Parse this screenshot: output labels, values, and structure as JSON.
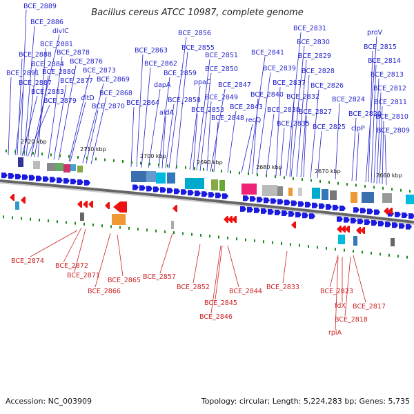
{
  "title": "Bacillus cereus ATCC 10987, complete genome",
  "footer": {
    "accession": "Accession: NC_003909",
    "topology": "Topology: circular; Length: 5,224,283 bp; Genes: 5,735"
  },
  "kbp_labels": [
    "2720 kbp",
    "2710 kbp",
    "2700 kbp",
    "2690 kbp",
    "2680 kbp",
    "2670 kbp",
    "2660 kbp"
  ],
  "upper_labels": [
    "BCE_2889",
    "BCE_2886",
    "divIC",
    "BCE_2881",
    "BCE_2888",
    "BCE_2878",
    "BCE_2884",
    "BCE_2876",
    "BCE_2891",
    "BCE_2880",
    "BCE_2873",
    "BCE_2887",
    "BCE_2877",
    "BCE_2869",
    "BCE_2883",
    "BCE_2868",
    "BCE_2879",
    "dltD",
    "BCE_2870",
    "BCE_2863",
    "BCE_2856",
    "BCE_2855",
    "BCE_2862",
    "BCE_2851",
    "BCE_2859",
    "BCE_2850",
    "dapA",
    "ppaC",
    "BCE_2847",
    "BCE_2858",
    "BCE_2849",
    "BCE_2864",
    "aldA",
    "BCE_2853",
    "BCE_2843",
    "BCE_2848",
    "BCE_2841",
    "BCE_2839",
    "recQ",
    "BCE_2840",
    "BCE_2838",
    "BCE_2831",
    "BCE_2830",
    "BCE_2829",
    "BCE_2828",
    "BCE_2837",
    "BCE_2826",
    "BCE_2832",
    "BCE_2824",
    "BCE_2827",
    "BCE_2835",
    "BCE_2825",
    "BCE_2820",
    "clpP",
    "proV",
    "BCE_2815",
    "BCE_2814",
    "BCE_2813",
    "BCE_2812",
    "BCE_2811",
    "BCE_2810",
    "BCE_2809"
  ],
  "lower_labels": [
    "BCE_2874",
    "BCE_2872",
    "BCE_2871",
    "BCE_2866",
    "BCE_2865",
    "BCE_2857",
    "BCE_2852",
    "BCE_2845",
    "BCE_2846",
    "BCE_2844",
    "BCE_2833",
    "BCE_2823",
    "fdX",
    "BCE_2817",
    "BCE_2818",
    "rpiA"
  ]
}
